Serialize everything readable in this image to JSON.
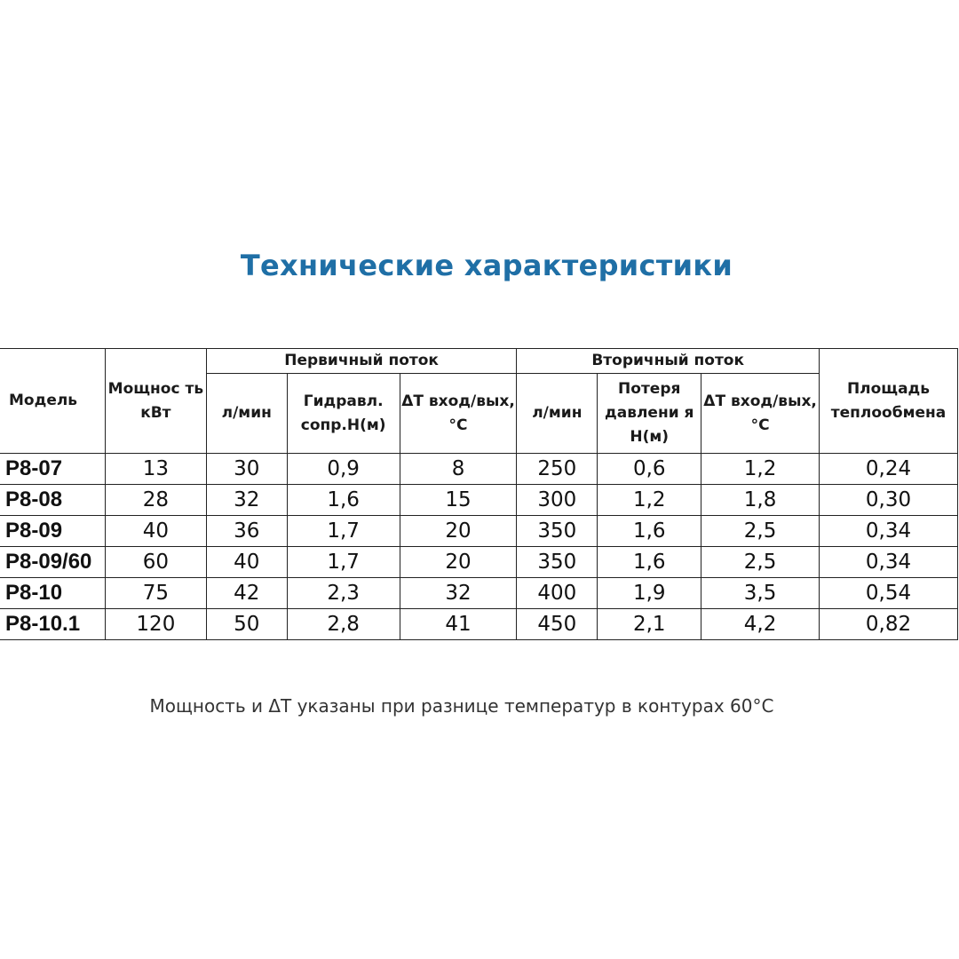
{
  "title": "Технические характеристики",
  "table": {
    "headers": {
      "model": "Модель",
      "power": "Мощнос ть кВт",
      "primary_group": "Первичный поток",
      "secondary_group": "Вторичный поток",
      "area": "Площадь теплообмена",
      "primary": [
        "л/мин",
        "Гидравл. сопр.Н(м)",
        "ΔT вход/вых, °C"
      ],
      "secondary": [
        "л/мин",
        "Потеря давлени я Н(м)",
        "ΔT вход/вых, °C"
      ]
    },
    "rows": [
      [
        "P8-07",
        "13",
        "30",
        "0,9",
        "8",
        "250",
        "0,6",
        "1,2",
        "0,24"
      ],
      [
        "P8-08",
        "28",
        "32",
        "1,6",
        "15",
        "300",
        "1,2",
        "1,8",
        "0,30"
      ],
      [
        "P8-09",
        "40",
        "36",
        "1,7",
        "20",
        "350",
        "1,6",
        "2,5",
        "0,34"
      ],
      [
        "P8-09/60",
        "60",
        "40",
        "1,7",
        "20",
        "350",
        "1,6",
        "2,5",
        "0,34"
      ],
      [
        "P8-10",
        "75",
        "42",
        "2,3",
        "32",
        "400",
        "1,9",
        "3,5",
        "0,54"
      ],
      [
        "P8-10.1",
        "120",
        "50",
        "2,8",
        "41",
        "450",
        "2,1",
        "4,2",
        "0,82"
      ]
    ]
  },
  "note": "Мощность и ΔT указаны при разнице температур в контурах 60°C",
  "colors": {
    "title": "#1f6fa6",
    "text": "#111111",
    "note": "#333333"
  }
}
